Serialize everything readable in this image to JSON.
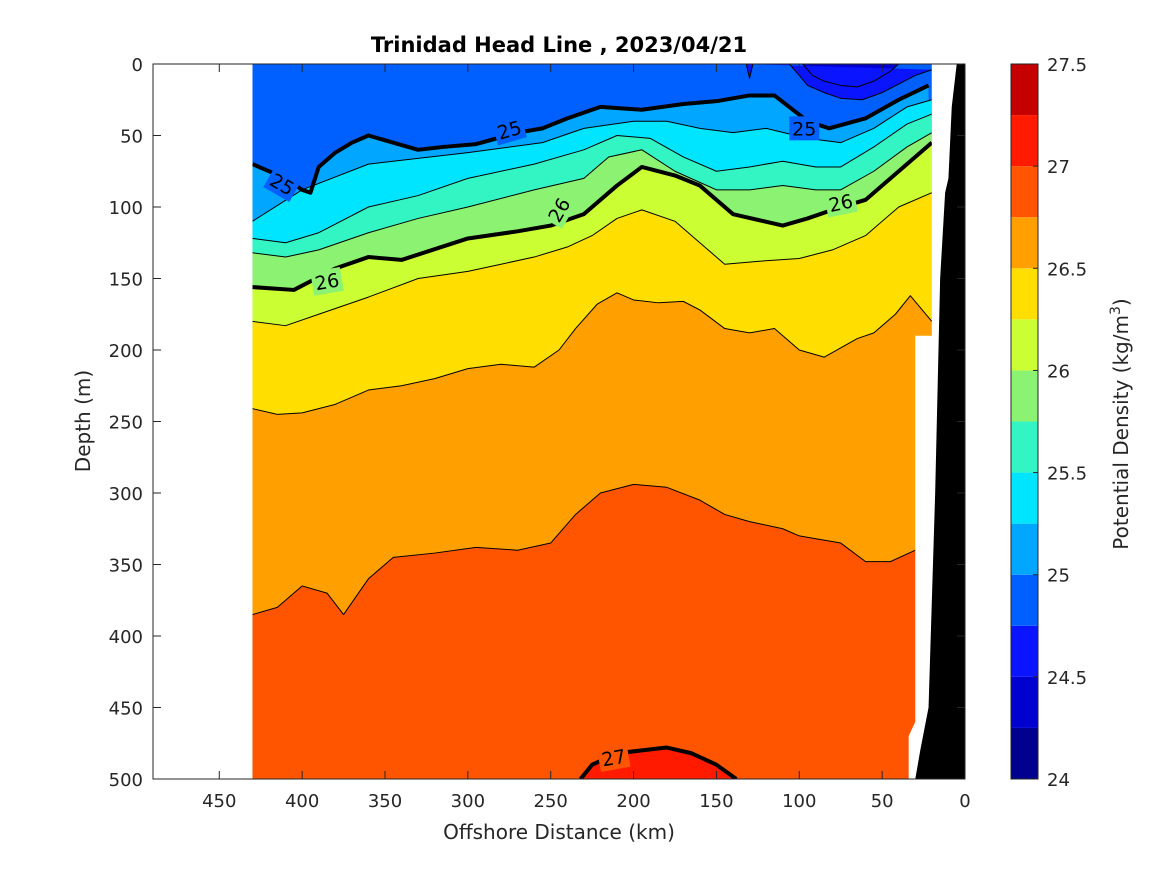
{
  "chart_data": {
    "type": "heatmap",
    "subtype": "filled-contour section",
    "title": "Trinidad Head Line , 2023/04/21",
    "xlabel": "Offshore Distance (km)",
    "ylabel": "Depth (m)",
    "colorbar_label": "Potential Density (kg/m",
    "colorbar_label_sup": "3",
    "colorbar_label_end": ")",
    "xlim": [
      490,
      0
    ],
    "x_reversed": true,
    "ylim": [
      500,
      0
    ],
    "y_reversed": true,
    "x_ticks": [
      450,
      400,
      350,
      300,
      250,
      200,
      150,
      100,
      50,
      0
    ],
    "x_tick_labels": [
      "450",
      "400",
      "350",
      "300",
      "250",
      "200",
      "150",
      "100",
      "50",
      "0"
    ],
    "y_ticks": [
      0,
      50,
      100,
      150,
      200,
      250,
      300,
      350,
      400,
      450,
      500
    ],
    "y_tick_labels": [
      "0",
      "50",
      "100",
      "150",
      "200",
      "250",
      "300",
      "350",
      "400",
      "450",
      "500"
    ],
    "colorbar_range": [
      24,
      27.5
    ],
    "colorbar_step": 0.25,
    "colorbar_ticks": [
      24,
      24.5,
      25,
      25.5,
      26,
      26.5,
      27,
      27.5
    ],
    "colorbar_tick_labels": [
      "24",
      "24.5",
      "25",
      "25.5",
      "26",
      "26.5",
      "27",
      "27.5"
    ],
    "colormap": [
      "#00008f",
      "#0000cf",
      "#0a14ff",
      "#0060ff",
      "#00a6ff",
      "#00e5ff",
      "#33f5c4",
      "#8cf272",
      "#ccff33",
      "#ffde00",
      "#ff9f00",
      "#ff5500",
      "#ff1a00",
      "#c40000"
    ],
    "data_x_range": [
      430,
      20
    ],
    "contour_lines": [
      24.25,
      24.5,
      24.75,
      25,
      25.25,
      25.5,
      25.75,
      26,
      26.25,
      26.5,
      26.75,
      27
    ],
    "labeled_contours": [
      25,
      26,
      27
    ],
    "isopycnals": [
      {
        "level": 24.5,
        "x": [
          98,
          92,
          85,
          75,
          65,
          55,
          45,
          40
        ],
        "depth": [
          0,
          8,
          12,
          15,
          16,
          12,
          5,
          0
        ]
      },
      {
        "level": 24.75,
        "x": [
          132,
          130,
          128,
          106,
          100,
          95,
          85,
          75,
          62,
          50,
          40,
          30,
          20
        ],
        "depth": [
          0,
          10,
          0,
          0,
          8,
          15,
          20,
          24,
          25,
          20,
          14,
          8,
          4
        ]
      },
      {
        "level": 25,
        "x": [
          430,
          410,
          400,
          395,
          390,
          380,
          370,
          360,
          345,
          330,
          315,
          295,
          270,
          255,
          240,
          220,
          195,
          170,
          150,
          130,
          115,
          95,
          82,
          60,
          40,
          22
        ],
        "depth": [
          70,
          80,
          88,
          90,
          72,
          62,
          55,
          50,
          55,
          60,
          58,
          56,
          48,
          45,
          38,
          30,
          32,
          28,
          26,
          22,
          22,
          40,
          45,
          38,
          25,
          15
        ]
      },
      {
        "level": 25.25,
        "x": [
          430,
          400,
          360,
          300,
          255,
          230,
          200,
          180,
          160,
          140,
          120,
          95,
          75,
          55,
          35,
          20
        ],
        "depth": [
          110,
          88,
          70,
          62,
          55,
          45,
          40,
          40,
          45,
          48,
          45,
          52,
          55,
          45,
          30,
          25
        ]
      },
      {
        "level": 25.5,
        "x": [
          430,
          410,
          390,
          360,
          330,
          300,
          260,
          230,
          210,
          190,
          170,
          150,
          130,
          110,
          90,
          75,
          55,
          35,
          20
        ],
        "depth": [
          122,
          125,
          118,
          100,
          92,
          80,
          70,
          60,
          50,
          52,
          65,
          75,
          72,
          68,
          72,
          72,
          58,
          42,
          35
        ]
      },
      {
        "level": 25.75,
        "x": [
          430,
          410,
          390,
          360,
          330,
          300,
          260,
          230,
          215,
          195,
          175,
          150,
          130,
          110,
          90,
          75,
          55,
          35,
          20
        ],
        "depth": [
          132,
          135,
          130,
          118,
          108,
          100,
          88,
          80,
          65,
          60,
          75,
          88,
          88,
          85,
          88,
          88,
          75,
          58,
          48
        ]
      },
      {
        "level": 26,
        "x": [
          430,
          405,
          380,
          360,
          340,
          300,
          270,
          250,
          230,
          210,
          195,
          175,
          160,
          140,
          110,
          95,
          80,
          60,
          40,
          20
        ],
        "depth": [
          156,
          158,
          143,
          135,
          137,
          122,
          117,
          113,
          105,
          85,
          72,
          78,
          85,
          105,
          113,
          108,
          102,
          95,
          75,
          55
        ]
      },
      {
        "level": 26.25,
        "x": [
          430,
          410,
          390,
          360,
          330,
          300,
          280,
          260,
          240,
          225,
          210,
          195,
          175,
          160,
          145,
          125,
          100,
          80,
          60,
          40,
          20
        ],
        "depth": [
          180,
          183,
          175,
          163,
          150,
          145,
          140,
          135,
          128,
          120,
          108,
          102,
          110,
          125,
          140,
          138,
          136,
          130,
          120,
          100,
          90
        ]
      },
      {
        "level": 26.5,
        "x": [
          430,
          415,
          400,
          380,
          360,
          340,
          320,
          300,
          280,
          260,
          245,
          235,
          222,
          210,
          200,
          185,
          170,
          160,
          145,
          130,
          115,
          100,
          85,
          65,
          55,
          42,
          33,
          20
        ],
        "depth": [
          241,
          245,
          244,
          238,
          228,
          225,
          220,
          213,
          210,
          212,
          200,
          185,
          168,
          160,
          165,
          167,
          166,
          172,
          185,
          188,
          185,
          200,
          205,
          192,
          188,
          175,
          162,
          180
        ]
      },
      {
        "level": 26.75,
        "x": [
          430,
          415,
          400,
          385,
          375,
          360,
          345,
          320,
          295,
          270,
          250,
          235,
          220,
          200,
          180,
          160,
          145,
          130,
          110,
          100,
          90,
          75,
          60,
          45,
          30,
          20
        ],
        "depth": [
          385,
          380,
          365,
          370,
          385,
          360,
          345,
          342,
          338,
          340,
          335,
          315,
          300,
          294,
          296,
          305,
          315,
          320,
          325,
          330,
          332,
          335,
          348,
          348,
          340,
          348
        ]
      },
      {
        "level": 27,
        "x": [
          232,
          225,
          210,
          195,
          180,
          165,
          150,
          138
        ],
        "depth": [
          500,
          490,
          482,
          480,
          478,
          482,
          490,
          500
        ]
      }
    ],
    "contour_label_items": [
      {
        "text": "25",
        "x": 275,
        "depth": 46,
        "angle": -16
      },
      {
        "text": "25",
        "x": 97,
        "depth": 45,
        "angle": 0
      },
      {
        "text": "25",
        "x": 412,
        "depth": 84,
        "angle": 30
      },
      {
        "text": "26",
        "x": 245,
        "depth": 102,
        "angle": -60
      },
      {
        "text": "26",
        "x": 385,
        "depth": 152,
        "angle": -10
      },
      {
        "text": "26",
        "x": 75,
        "depth": 97,
        "angle": -12
      },
      {
        "text": "27",
        "x": 212,
        "depth": 485,
        "angle": -10
      }
    ],
    "no_data_gaps": [
      {
        "x": [
          20,
          20,
          30,
          30,
          34,
          34
        ],
        "depth": [
          0,
          190,
          190,
          460,
          470,
          500
        ]
      }
    ],
    "bathymetry": {
      "x": [
        0,
        5,
        8,
        10,
        12,
        15,
        18,
        22,
        27,
        30
      ],
      "depth": [
        0,
        0,
        30,
        80,
        90,
        150,
        300,
        450,
        480,
        500
      ]
    }
  }
}
